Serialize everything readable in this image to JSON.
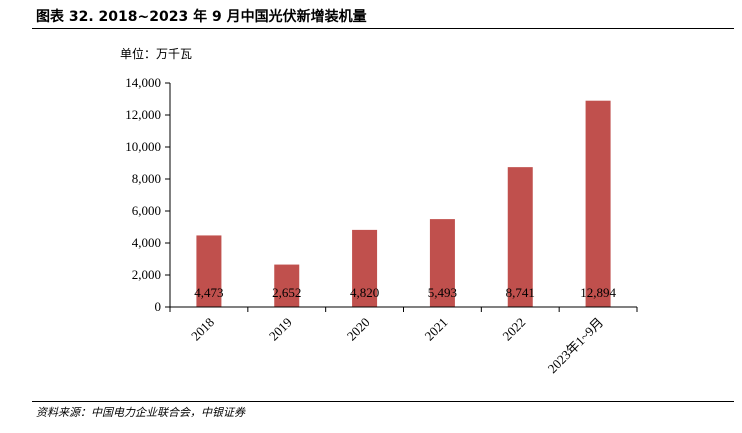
{
  "figure_title": "图表 32. 2018~2023 年 9 月中国光伏新增装机量",
  "unit_label": "单位：万千瓦",
  "source_note": "资料来源：中国电力企业联合会，中银证券",
  "colors": {
    "bar": "#c0504d",
    "axis": "#000000"
  },
  "chart_data": {
    "type": "bar",
    "title": "",
    "xlabel": "",
    "ylabel": "",
    "categories": [
      "2018",
      "2019",
      "2020",
      "2021",
      "2022",
      "2023年1~9月"
    ],
    "values": [
      4473,
      2652,
      4820,
      5493,
      8741,
      12894
    ],
    "data_labels": [
      "4,473",
      "2,652",
      "4,820",
      "5,493",
      "8,741",
      "12,894"
    ],
    "ylim": [
      0,
      14000
    ],
    "yticks": [
      0,
      2000,
      4000,
      6000,
      8000,
      10000,
      12000,
      14000
    ],
    "ytick_labels": [
      "0",
      "2,000",
      "4,000",
      "6,000",
      "8,000",
      "10,000",
      "12,000",
      "14,000"
    ],
    "grid": false,
    "legend": "none"
  }
}
